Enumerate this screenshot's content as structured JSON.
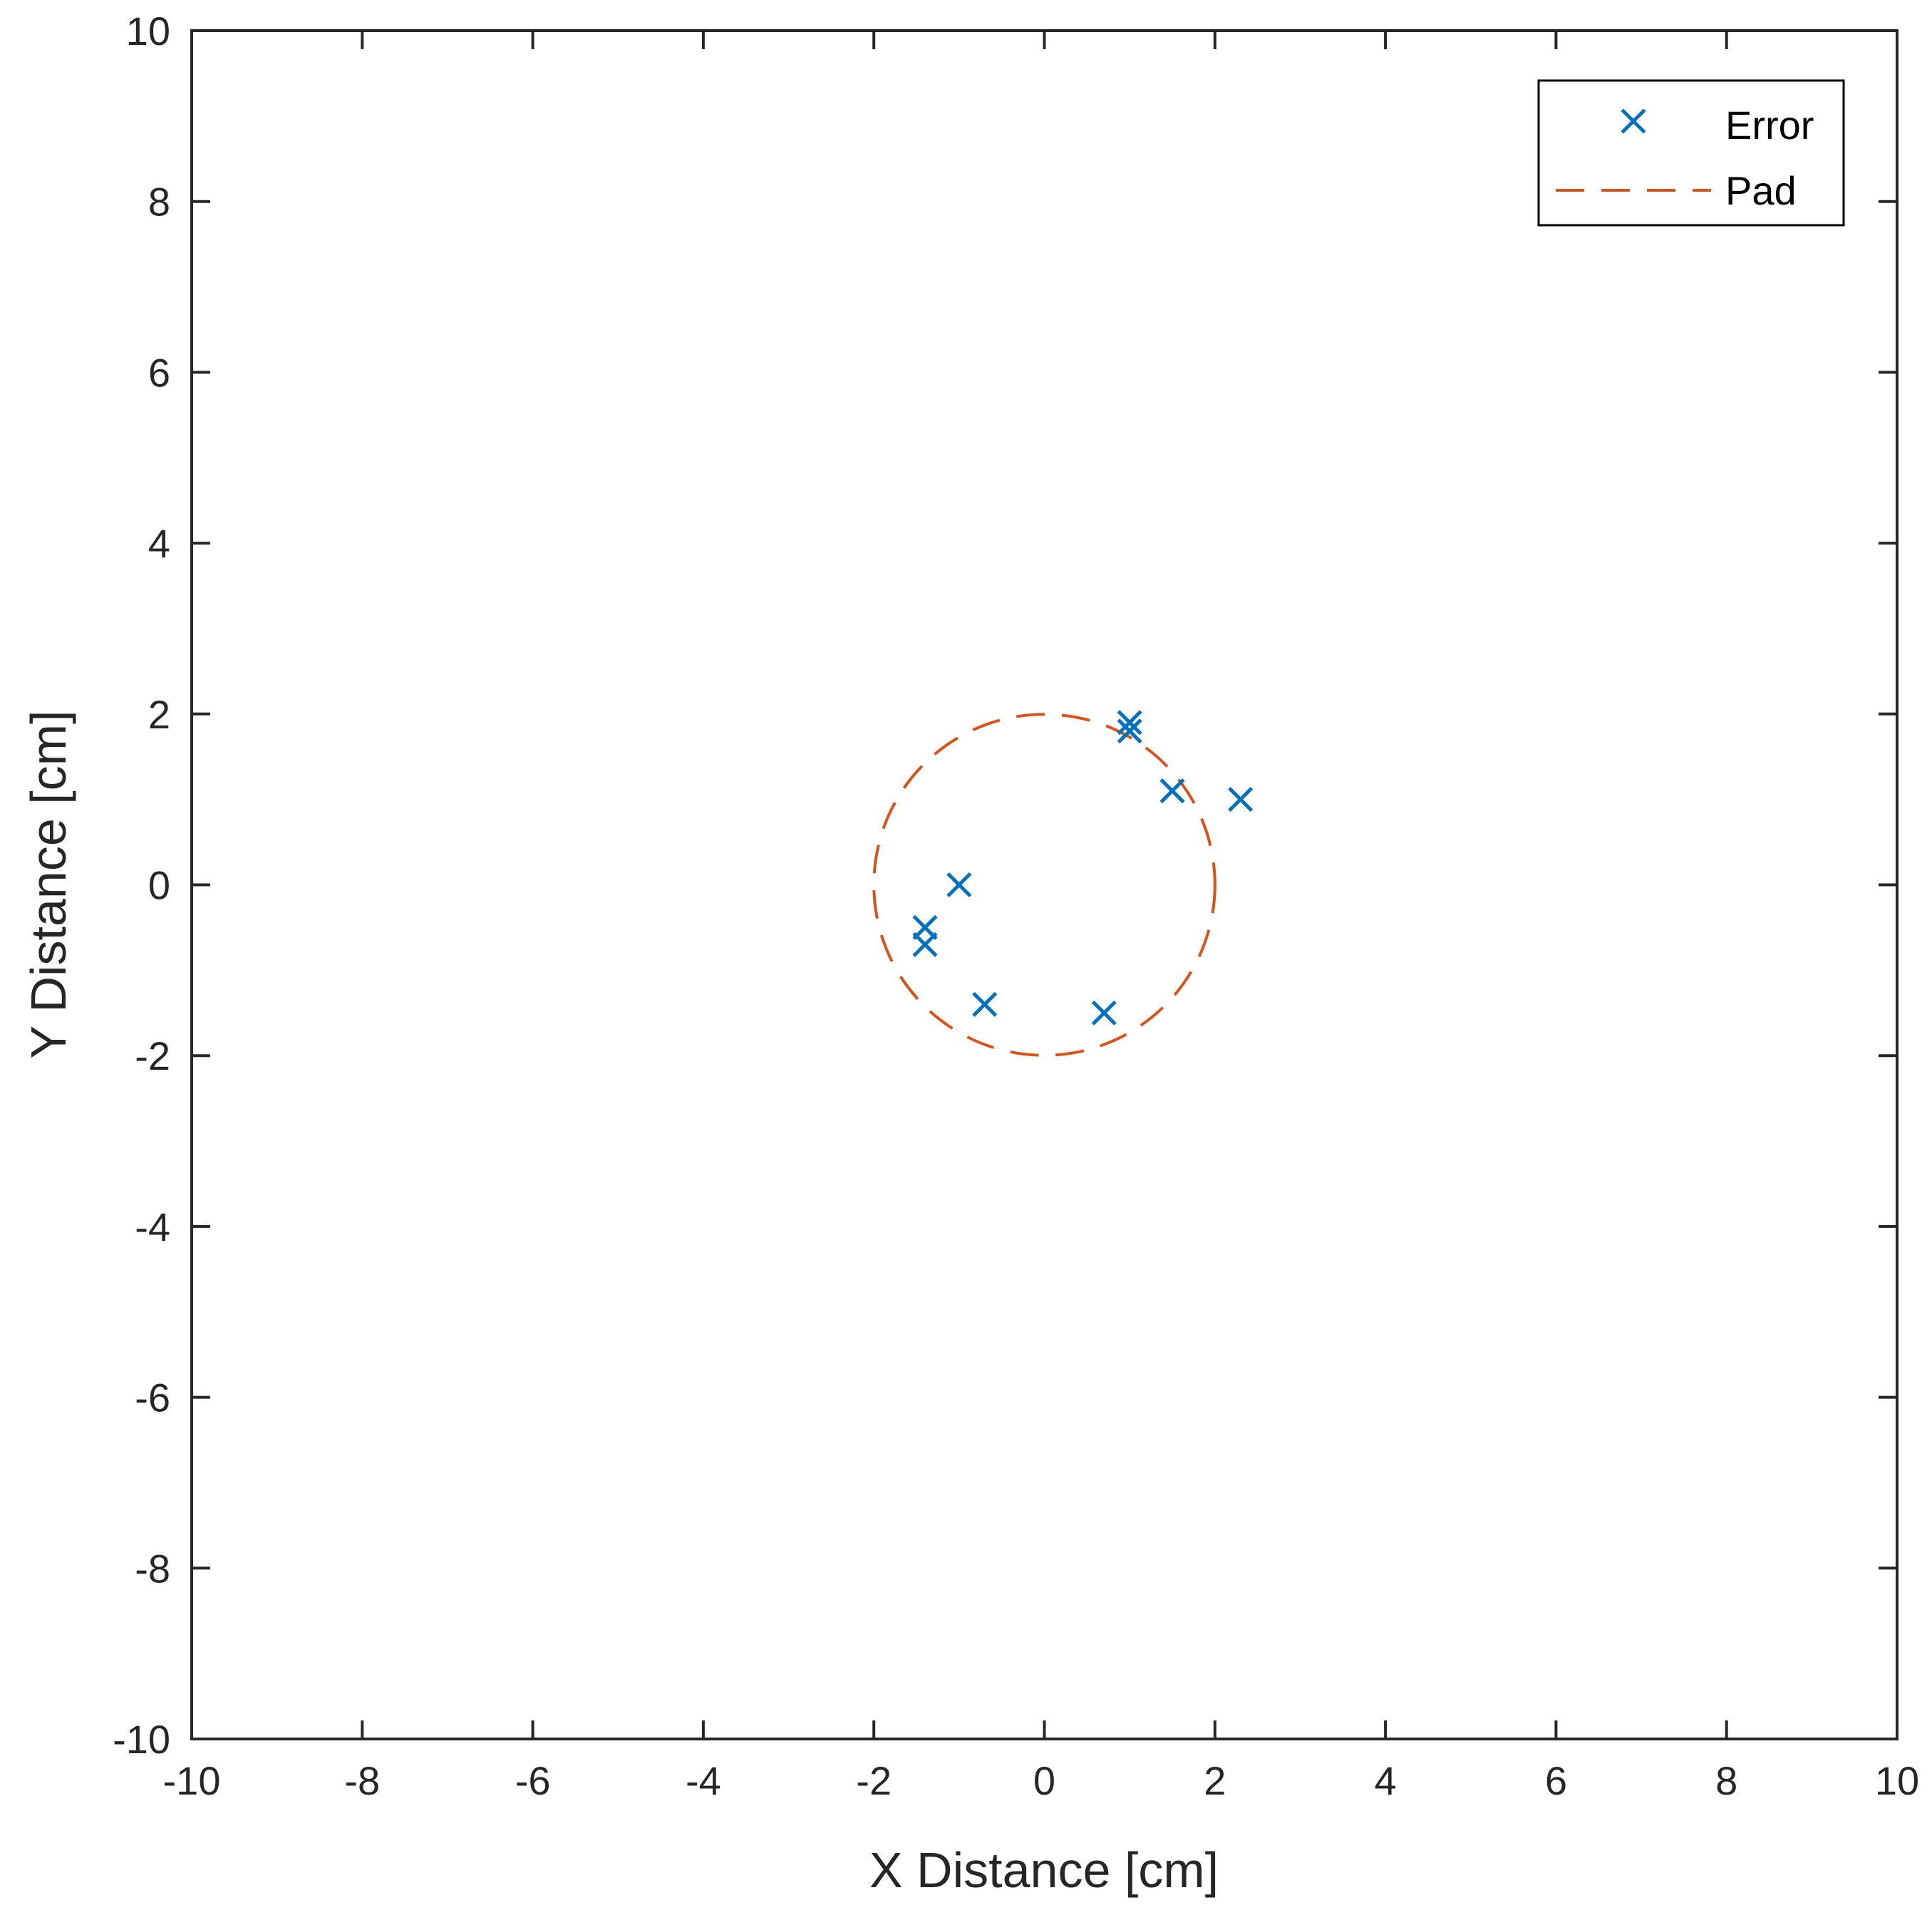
{
  "chart_data": {
    "type": "scatter",
    "title": "",
    "xlabel": "X Distance [cm]",
    "ylabel": "Y Distance [cm]",
    "xlim": [
      -10,
      10
    ],
    "ylim": [
      -10,
      10
    ],
    "xticks": [
      -10,
      -8,
      -6,
      -4,
      -2,
      0,
      2,
      4,
      6,
      8,
      10
    ],
    "yticks": [
      -10,
      -8,
      -6,
      -4,
      -2,
      0,
      2,
      4,
      6,
      8,
      10
    ],
    "xtick_labels": [
      "-10",
      "-8",
      "-6",
      "-4",
      "-2",
      "0",
      "2",
      "4",
      "6",
      "8",
      "10"
    ],
    "ytick_labels": [
      "-10",
      "-8",
      "-6",
      "-4",
      "-2",
      "0",
      "2",
      "4",
      "6",
      "8",
      "10"
    ],
    "grid": false,
    "legend_position": "top-right",
    "series": [
      {
        "name": "Error",
        "marker": "x",
        "color": "#0072BD",
        "points": [
          {
            "x": 1.0,
            "y": 1.9
          },
          {
            "x": 1.0,
            "y": 1.8
          },
          {
            "x": 1.5,
            "y": 1.1
          },
          {
            "x": 2.3,
            "y": 1.0
          },
          {
            "x": -1.0,
            "y": 0.0
          },
          {
            "x": -1.4,
            "y": -0.5
          },
          {
            "x": -1.4,
            "y": -0.7
          },
          {
            "x": -0.7,
            "y": -1.4
          },
          {
            "x": 0.7,
            "y": -1.5
          }
        ]
      },
      {
        "name": "Pad",
        "style": "dashed-circle",
        "color": "#D95319",
        "center": {
          "x": 0,
          "y": 0
        },
        "radius": 2
      }
    ]
  }
}
